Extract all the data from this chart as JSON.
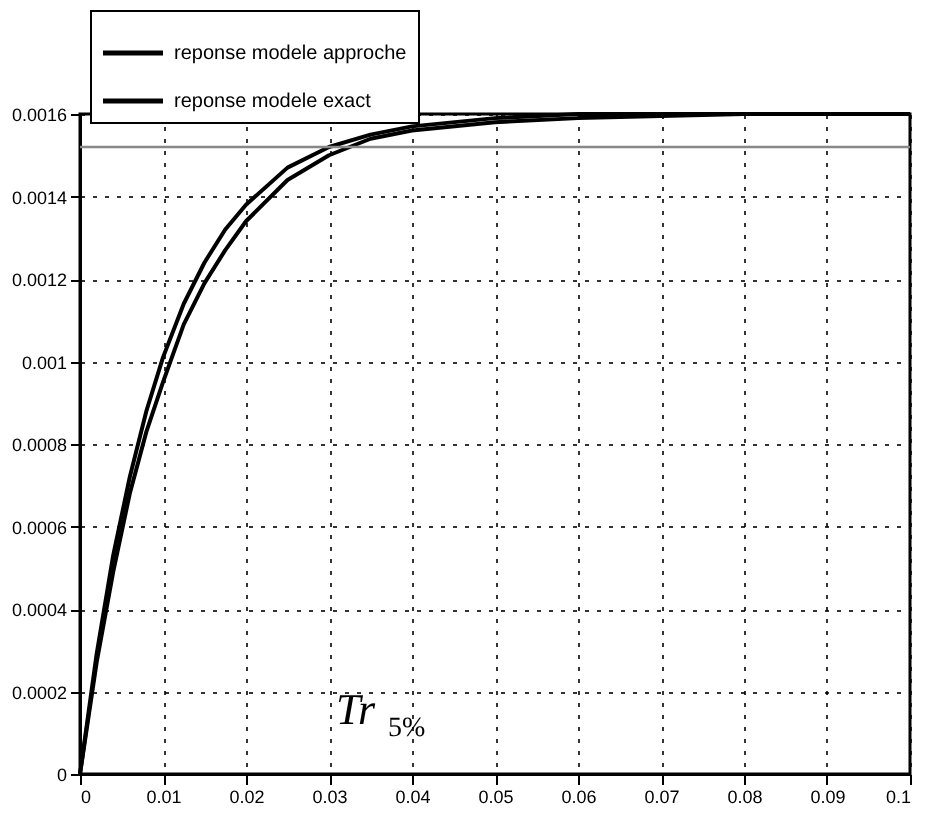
{
  "chart_data": {
    "type": "line",
    "x": [
      0,
      0.002,
      0.004,
      0.006,
      0.008,
      0.01,
      0.0125,
      0.015,
      0.0175,
      0.02,
      0.025,
      0.03,
      0.035,
      0.04,
      0.05,
      0.06,
      0.08,
      0.1
    ],
    "series": [
      {
        "name": "reponse modele approche",
        "color": "#000000",
        "values": [
          0,
          0.00029,
          0.00053,
          0.00072,
          0.00088,
          0.00101,
          0.00114,
          0.00124,
          0.00132,
          0.00138,
          0.00147,
          0.00152,
          0.00155,
          0.00157,
          0.00159,
          0.0016,
          0.0016,
          0.0016
        ]
      },
      {
        "name": "reponse modele exact",
        "color": "#000000",
        "x": [
          0,
          0.002,
          0.004,
          0.006,
          0.008,
          0.01,
          0.0125,
          0.015,
          0.0175,
          0.02,
          0.025,
          0.03,
          0.035,
          0.04,
          0.05,
          0.06,
          0.08
        ],
        "values": [
          0,
          0.00027,
          0.00049,
          0.00068,
          0.00083,
          0.00095,
          0.00109,
          0.00119,
          0.00127,
          0.00134,
          0.00144,
          0.0015,
          0.00154,
          0.00156,
          0.00158,
          0.00159,
          0.0016
        ]
      }
    ],
    "xlim": [
      0,
      0.1
    ],
    "xticks": [
      0,
      0.01,
      0.02,
      0.03,
      0.04,
      0.05,
      0.06,
      0.07,
      0.08,
      0.09,
      0.1
    ],
    "ylim": [
      0,
      0.0016
    ],
    "yticks": [
      0,
      0.0002,
      0.0004,
      0.0006,
      0.0008,
      0.001,
      0.0012,
      0.0014,
      0.0016
    ],
    "ref_lines": [
      {
        "axis": "y",
        "value": 0.00152,
        "color": "#888888"
      }
    ],
    "annotations": [
      "Tr$_{5%}$"
    ],
    "grid": true,
    "legend": "top left",
    "marker": "none",
    "line_style": "solid"
  }
}
